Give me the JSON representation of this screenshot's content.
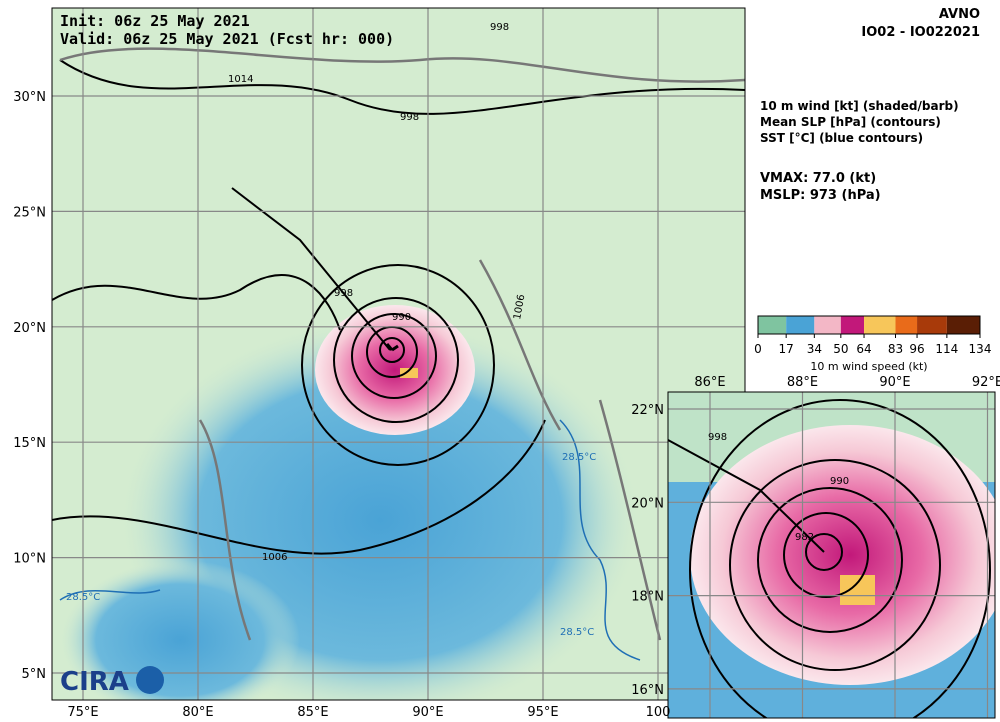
{
  "header": {
    "init": "Init:  06z 25 May 2021",
    "valid": "Valid: 06z 25 May 2021 (Fcst hr: 000)",
    "model": "AVNO",
    "storm": "IO02 - IO022021"
  },
  "legend": {
    "lines": [
      "10 m wind [kt] (shaded/barb)",
      "Mean SLP [hPa] (contours)",
      "SST [°C] (blue contours)"
    ],
    "vmax": "VMAX:  77.0 (kt)",
    "mslp": "MSLP:  973 (hPa)"
  },
  "colorbar": {
    "label": "10 m wind speed (kt)",
    "ticks": [
      0,
      17,
      34,
      50,
      64,
      83,
      96,
      114,
      134
    ],
    "colors": [
      "#7fc4a0",
      "#4aa3d6",
      "#f3b7c6",
      "#c2187a",
      "#f7c65a",
      "#e96b1a",
      "#a83a0a",
      "#5a1e05"
    ]
  },
  "map": {
    "lon_labels": [
      "75°E",
      "80°E",
      "85°E",
      "90°E",
      "95°E",
      "100"
    ],
    "lat_labels": [
      "30°N",
      "25°N",
      "20°N",
      "15°N",
      "10°N",
      "5°N"
    ],
    "contour_labels": [
      "998",
      "1014",
      "998",
      "998",
      "1006",
      "990",
      "1006",
      "28.5°C",
      "28.5°C",
      "28.5°C"
    ],
    "logo": "CIRA"
  },
  "inset": {
    "lon_labels": [
      "86°E",
      "88°E",
      "90°E",
      "92°E"
    ],
    "lat_labels": [
      "22°N",
      "20°N",
      "18°N",
      "16°N"
    ],
    "contour_labels": [
      "990",
      "982",
      "998"
    ]
  }
}
